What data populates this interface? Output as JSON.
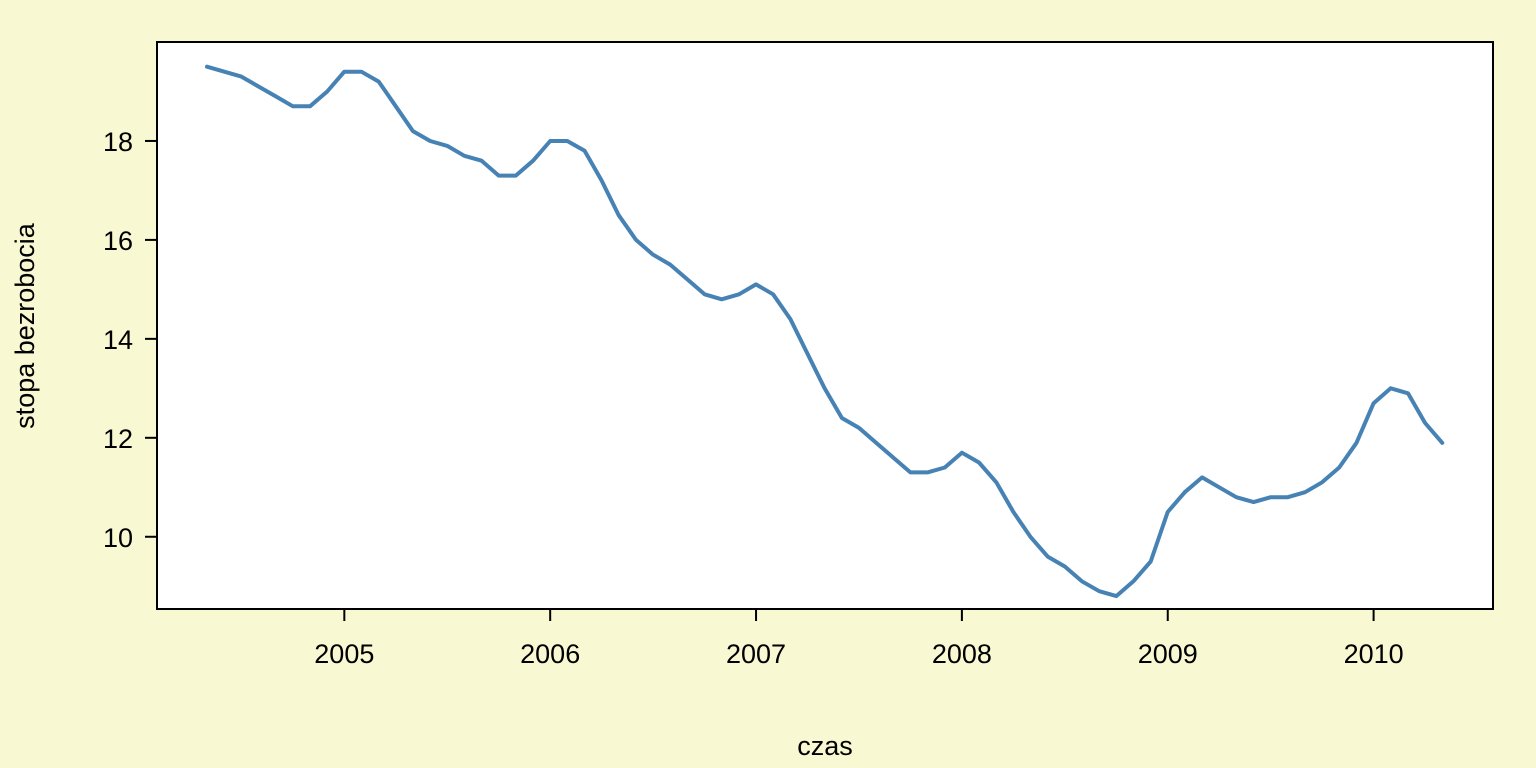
{
  "chart_data": {
    "type": "line",
    "title": "",
    "xlabel": "czas",
    "ylabel": "stopa bezrobocia",
    "xlim": [
      2004.09,
      2010.58
    ],
    "ylim": [
      8.54,
      20.0
    ],
    "x_ticks": [
      2005,
      2006,
      2007,
      2008,
      2009,
      2010
    ],
    "x_tick_labels": [
      "2005",
      "2006",
      "2007",
      "2008",
      "2009",
      "2010"
    ],
    "y_ticks": [
      10,
      12,
      14,
      16,
      18
    ],
    "y_tick_labels": [
      "10",
      "12",
      "14",
      "16",
      "18"
    ],
    "grid": false,
    "colors": {
      "line": "#4682b4",
      "background": "#f8f8d2",
      "plot_area": "#ffffff"
    },
    "series": [
      {
        "x": [
          2004.333,
          2004.417,
          2004.5,
          2004.583,
          2004.667,
          2004.75,
          2004.833,
          2004.917,
          2005.0,
          2005.083,
          2005.167,
          2005.25,
          2005.333,
          2005.417,
          2005.5,
          2005.583,
          2005.667,
          2005.75,
          2005.833,
          2005.917,
          2006.0,
          2006.083,
          2006.167,
          2006.25,
          2006.333,
          2006.417,
          2006.5,
          2006.583,
          2006.667,
          2006.75,
          2006.833,
          2006.917,
          2007.0,
          2007.083,
          2007.167,
          2007.25,
          2007.333,
          2007.417,
          2007.5,
          2007.583,
          2007.667,
          2007.75,
          2007.833,
          2007.917,
          2008.0,
          2008.083,
          2008.167,
          2008.25,
          2008.333,
          2008.417,
          2008.5,
          2008.583,
          2008.667,
          2008.75,
          2008.833,
          2008.917,
          2009.0,
          2009.083,
          2009.167,
          2009.25,
          2009.333,
          2009.417,
          2009.5,
          2009.583,
          2009.667,
          2009.75,
          2009.833,
          2009.917,
          2010.0,
          2010.083,
          2010.167,
          2010.25,
          2010.333
        ],
        "values": [
          19.5,
          19.4,
          19.3,
          19.1,
          18.9,
          18.7,
          18.7,
          19.0,
          19.4,
          19.4,
          19.2,
          18.7,
          18.2,
          18.0,
          17.9,
          17.7,
          17.6,
          17.3,
          17.3,
          17.6,
          18.0,
          18.0,
          17.8,
          17.2,
          16.5,
          16.0,
          15.7,
          15.5,
          15.2,
          14.9,
          14.8,
          14.9,
          15.1,
          14.9,
          14.4,
          13.7,
          13.0,
          12.4,
          12.2,
          11.9,
          11.6,
          11.3,
          11.3,
          11.4,
          11.7,
          11.5,
          11.1,
          10.5,
          10.0,
          9.6,
          9.4,
          9.1,
          8.9,
          8.8,
          9.1,
          9.5,
          10.5,
          10.9,
          11.2,
          11.0,
          10.8,
          10.7,
          10.8,
          10.8,
          10.9,
          11.1,
          11.4,
          11.9,
          12.7,
          13.0,
          12.9,
          12.3,
          11.9
        ]
      }
    ]
  }
}
